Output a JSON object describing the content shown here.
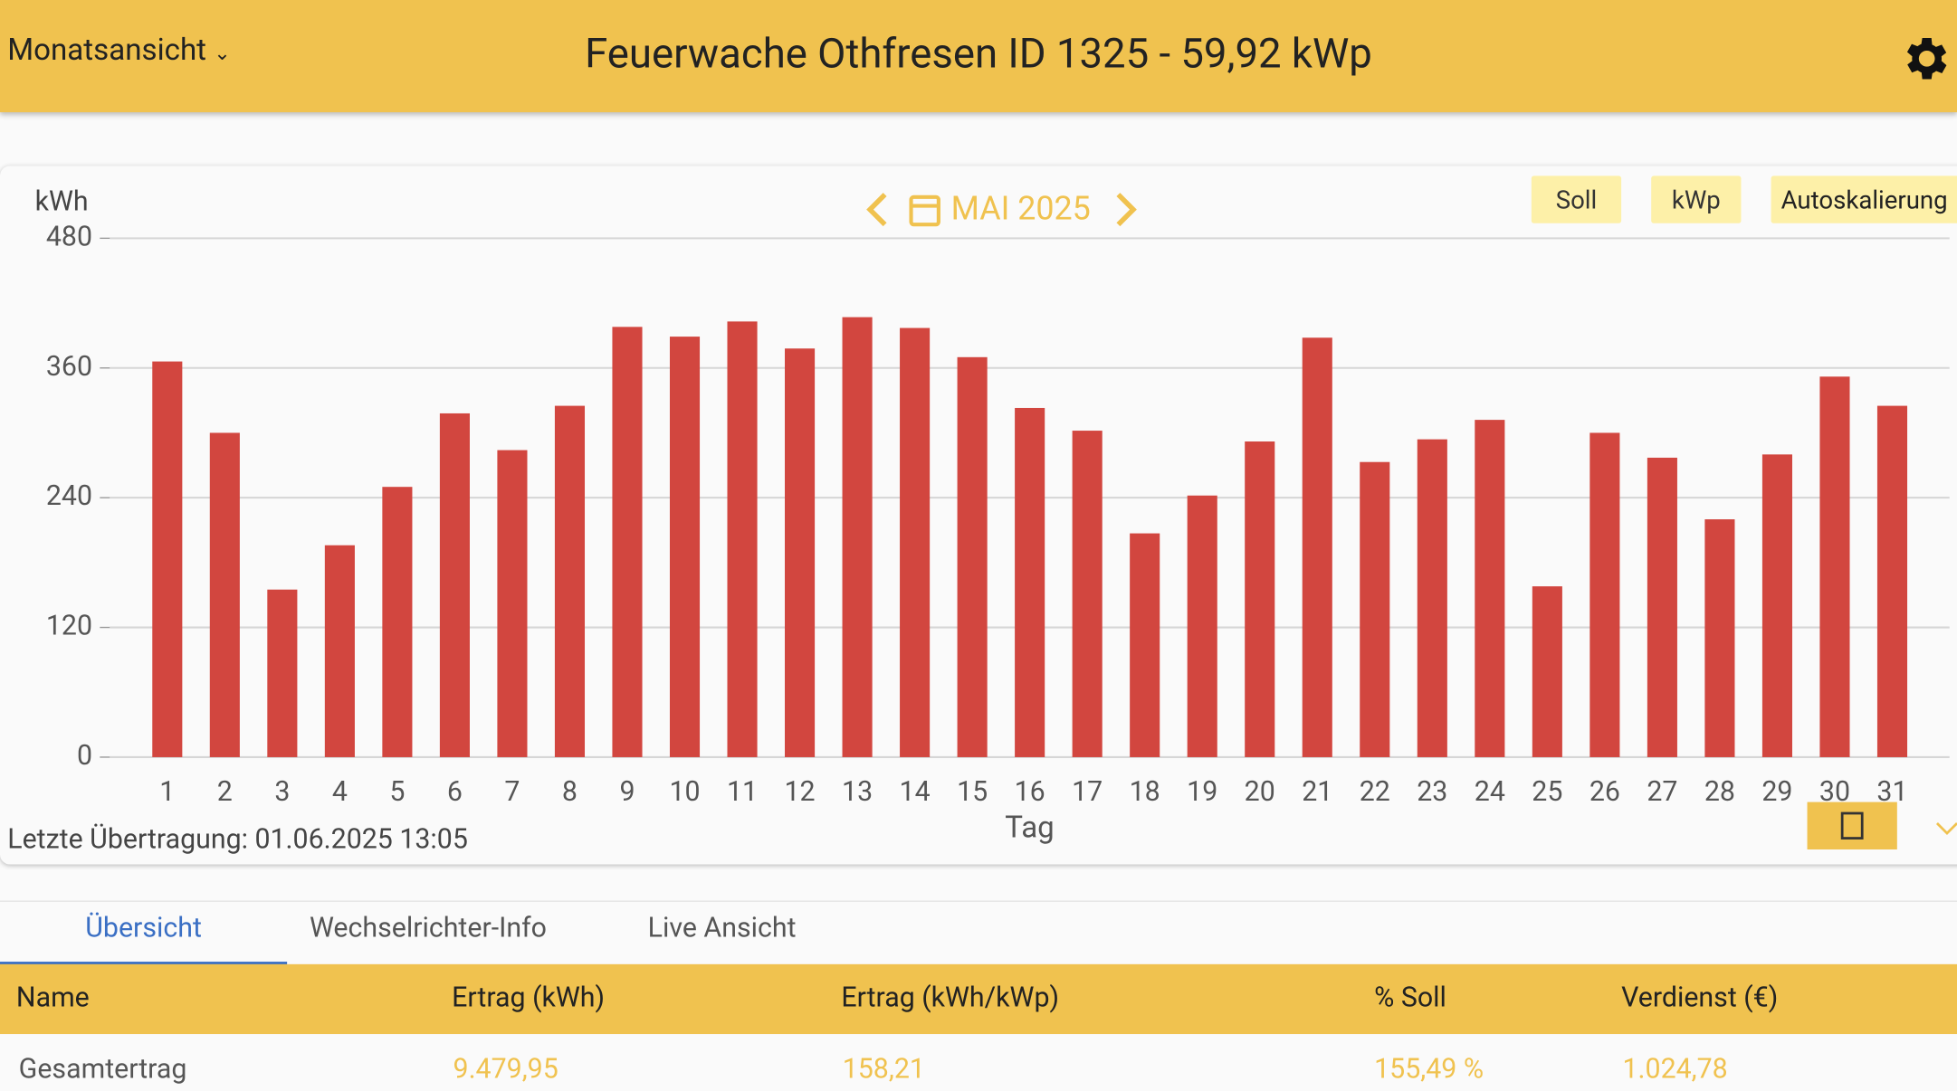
{
  "header": {
    "view_selector": "Monatsansicht",
    "title": "Feuerwache Othfresen ID 1325 - 59,92 kWp"
  },
  "chart_data": {
    "type": "bar",
    "y_label": "kWh",
    "x_label": "Tag",
    "period": "MAI 2025",
    "buttons": [
      "Soll",
      "kWp",
      "Autoskalierung"
    ],
    "categories": [
      "1",
      "2",
      "3",
      "4",
      "5",
      "6",
      "7",
      "8",
      "9",
      "10",
      "11",
      "12",
      "13",
      "14",
      "15",
      "16",
      "17",
      "18",
      "19",
      "20",
      "21",
      "22",
      "23",
      "24",
      "25",
      "26",
      "27",
      "28",
      "29",
      "30",
      "31"
    ],
    "values": [
      366,
      300,
      155,
      196,
      250,
      318,
      284,
      325,
      398,
      389,
      403,
      378,
      407,
      397,
      370,
      323,
      302,
      207,
      242,
      292,
      388,
      273,
      294,
      312,
      158,
      300,
      277,
      220,
      280,
      352,
      325
    ],
    "color": "#d2463f",
    "ylim": [
      0,
      480
    ],
    "yticks": [
      0,
      120,
      240,
      360,
      480
    ],
    "grid": true
  },
  "last_transfer": "Letzte Übertragung: 01.06.2025 13:05",
  "tabs": [
    "Übersicht",
    "Wechselrichter-Info",
    "Live Ansicht"
  ],
  "table": {
    "columns": [
      "Name",
      "Ertrag (kWh)",
      "Ertrag (kWh/kWp)",
      "% Soll",
      "Verdienst (€)"
    ],
    "rows": [
      [
        "Gesamtertrag",
        "9.479,95",
        "158,21",
        "155,49 %",
        "1.024,78"
      ]
    ]
  }
}
